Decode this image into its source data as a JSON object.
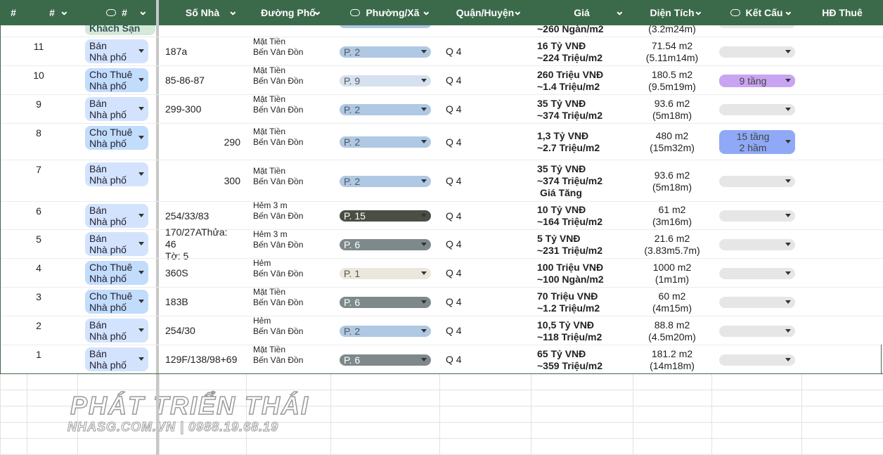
{
  "header": {
    "columns": [
      "#",
      "#",
      "#",
      "Số Nhà",
      "Đường Phố",
      "Phường/Xã",
      "Quận/Huyện",
      "Giá",
      "Diện Tích",
      "Kết Cấu",
      "HĐ Thuê"
    ]
  },
  "top_row": {
    "type": "Khách Sạn",
    "price": "~260 Ngàn/m2",
    "area": "(3.2m24m)"
  },
  "rows": [
    {
      "no": "11",
      "type": {
        "lines": [
          "Bán",
          "Nhà phố"
        ],
        "color": "#d3e3fd"
      },
      "address": [
        "187a"
      ],
      "street": [
        "Mặt Tiền",
        "Bến Vân Đồn"
      ],
      "ward": {
        "label": "P. 2",
        "color": "#afc8e3"
      },
      "district": "Q 4",
      "price": [
        "16 Tỷ VNĐ",
        "~224 Triệu/m2"
      ],
      "area": [
        "71.54 m2",
        "(5.11m14m)"
      ]
    },
    {
      "no": "10",
      "type": {
        "lines": [
          "Cho Thuê",
          "Nhà phố"
        ],
        "color": "#c2dcfb"
      },
      "address": [
        "85-86-87"
      ],
      "street": [
        "Mặt Tiền",
        "Bến Vân Đồn"
      ],
      "ward": {
        "label": "P. 9",
        "color": "#d6e1ef"
      },
      "district": "Q 4",
      "price": [
        "260 Triệu VNĐ",
        "~1.4 Triệu/m2"
      ],
      "area": [
        "180.5 m2",
        "(9.5m19m)"
      ],
      "structure": {
        "lines": [
          "9 tầng"
        ],
        "color": "#c9a4f3"
      }
    },
    {
      "no": "9",
      "type": {
        "lines": [
          "Bán",
          "Nhà phố"
        ],
        "color": "#d3e3fd"
      },
      "address": [
        "299-300"
      ],
      "street": [
        "Mặt Tiền",
        "Bến Vân Đồn"
      ],
      "ward": {
        "label": "P. 2",
        "color": "#afc8e3"
      },
      "district": "Q 4",
      "price": [
        "35 Tỷ VNĐ",
        "~374 Triệu/m2"
      ],
      "area": [
        "93.6 m2",
        "(5m18m)"
      ]
    },
    {
      "no": "8",
      "type": {
        "lines": [
          "Cho Thuê",
          "Nhà phố"
        ],
        "color": "#c2dcfb"
      },
      "address": [
        "290"
      ],
      "street": [
        "Mặt Tiền",
        "Bến Vân Đồn"
      ],
      "ward": {
        "label": "P. 2",
        "color": "#afc8e3"
      },
      "district": "Q 4",
      "price": [
        "1,3 Tỷ VNĐ",
        "~2.7 Triệu/m2"
      ],
      "area": [
        "480 m2",
        "(15m32m)"
      ],
      "structure": {
        "lines": [
          "15 tầng",
          "2 hầm"
        ],
        "color": "#8fa9f6"
      }
    },
    {
      "no": "7",
      "type": {
        "lines": [
          "Bán",
          "Nhà phố"
        ],
        "color": "#d3e3fd"
      },
      "address": [
        "300"
      ],
      "street": [
        "Mặt Tiền",
        "Bến Vân Đồn"
      ],
      "ward": {
        "label": "P. 2",
        "color": "#afc8e3"
      },
      "district": "Q 4",
      "price": [
        "35 Tỷ VNĐ",
        "~374 Triệu/m2",
        "Giá Tăng"
      ],
      "area": [
        "93.6 m2",
        "(5m18m)"
      ]
    },
    {
      "no": "6",
      "type": {
        "lines": [
          "Bán",
          "Nhà phố"
        ],
        "color": "#d3e3fd"
      },
      "address": [
        "254/33/83"
      ],
      "street": [
        "Hẻm 3 m",
        "Bến Vân Đồn"
      ],
      "ward": {
        "label": "P. 15",
        "color": "#4a4e44"
      },
      "district": "Q 4",
      "price": [
        "10 Tỷ VNĐ",
        "~164 Triệu/m2"
      ],
      "area": [
        "61 m2",
        "(3m16m)"
      ]
    },
    {
      "no": "5",
      "type": {
        "lines": [
          "Bán",
          "Nhà phố"
        ],
        "color": "#d3e3fd"
      },
      "address": [
        "170/27AThửa: 46",
        "Tờ: 5"
      ],
      "street": [
        "Hẻm 3 m",
        "Bến Vân Đồn"
      ],
      "ward": {
        "label": "P. 6",
        "color": "#7d898a"
      },
      "district": "Q 4",
      "price": [
        "5 Tỷ VNĐ",
        "~231 Triệu/m2"
      ],
      "area": [
        "21.6 m2",
        "(3.83m5.7m)"
      ]
    },
    {
      "no": "4",
      "type": {
        "lines": [
          "Cho Thuê",
          "Nhà phố"
        ],
        "color": "#c2dcfb"
      },
      "address": [
        "360S"
      ],
      "street": [
        "Hẻm",
        "Bến Vân Đồn"
      ],
      "ward": {
        "label": "P. 1",
        "color": "#ece7dd"
      },
      "district": "Q 4",
      "price": [
        "100 Triệu VNĐ",
        "~100 Ngàn/m2"
      ],
      "area": [
        "1000 m2",
        "(1m1m)"
      ]
    },
    {
      "no": "3",
      "type": {
        "lines": [
          "Cho Thuê",
          "Nhà phố"
        ],
        "color": "#c2dcfb"
      },
      "address": [
        "183B"
      ],
      "street": [
        "Mặt Tiền",
        "Bến Vân Đồn"
      ],
      "ward": {
        "label": "P. 6",
        "color": "#7d898a"
      },
      "district": "Q 4",
      "price": [
        "70 Triệu VNĐ",
        "~1.2 Triệu/m2"
      ],
      "area": [
        "60 m2",
        "(4m15m)"
      ]
    },
    {
      "no": "2",
      "type": {
        "lines": [
          "Bán",
          "Nhà phố"
        ],
        "color": "#d3e3fd"
      },
      "address": [
        "254/30"
      ],
      "street": [
        "Hẻm",
        "Bến Vân Đồn"
      ],
      "ward": {
        "label": "P. 2",
        "color": "#afc8e3"
      },
      "district": "Q 4",
      "price": [
        "10,5 Tỷ VNĐ",
        "~118 Triệu/m2"
      ],
      "area": [
        "88.8 m2",
        "(4.5m20m)"
      ]
    },
    {
      "no": "1",
      "type": {
        "lines": [
          "Bán",
          "Nhà phố"
        ],
        "color": "#d3e3fd"
      },
      "address": [
        "129F/138/98+69"
      ],
      "street": [
        "Mặt Tiền",
        "Bến Vân Đồn"
      ],
      "ward": {
        "label": "P. 6",
        "color": "#7d898a"
      },
      "district": "Q 4",
      "price": [
        "65 Tỷ VNĐ",
        "~359 Triệu/m2"
      ],
      "area": [
        "181.2 m2",
        "(14m18m)"
      ]
    }
  ],
  "watermark": {
    "brand": "PHÁT TRIỂN THÁI",
    "contact": "NHASG.COM.VN | 0988.19.68.19"
  }
}
